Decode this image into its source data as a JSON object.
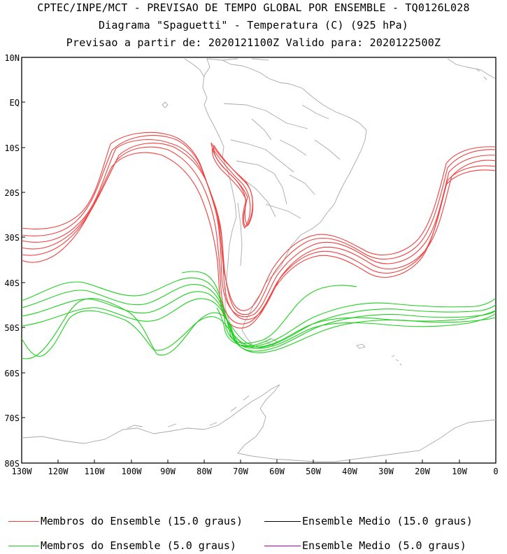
{
  "titles": {
    "line1": "CPTEC/INPE/MCT - PREVISAO DE TEMPO GLOBAL POR ENSEMBLE - TQ0126L028",
    "line2": "Diagrama \"Spaguetti\" - Temperatura (C) (925 hPa)",
    "line3": "Previsao a partir de: 2020121100Z  Valido para: 2020122500Z"
  },
  "axes": {
    "lat_labels": [
      "10N",
      "EQ",
      "10S",
      "20S",
      "30S",
      "40S",
      "50S",
      "60S",
      "70S",
      "80S"
    ],
    "lon_labels": [
      "130W",
      "120W",
      "110W",
      "100W",
      "90W",
      "80W",
      "70W",
      "60W",
      "50W",
      "40W",
      "30W",
      "20W",
      "10W",
      "0"
    ]
  },
  "legend": {
    "items": [
      {
        "label": "Membros do Ensemble (15.0 graus)",
        "color": "#f04040"
      },
      {
        "label": "Ensemble Medio (15.0 graus)",
        "color": "#000000"
      },
      {
        "label": "Membros do Ensemble (5.0 graus)",
        "color": "#1ecf1e"
      },
      {
        "label": "Ensemble Medio (5.0 graus)",
        "color": "#b000b0"
      }
    ]
  },
  "colors": {
    "coast": "#a8a8a8",
    "red_members": "#f04040",
    "green_members": "#1ecf1e"
  }
}
